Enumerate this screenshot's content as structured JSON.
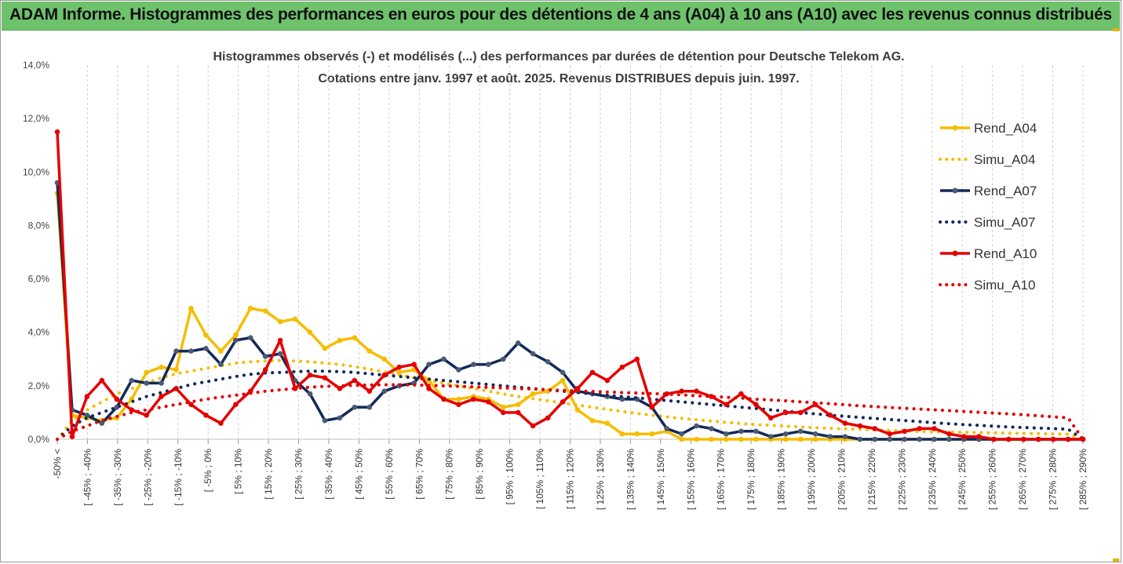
{
  "banner": {
    "title": "ADAM Informe. Histogrammes des performances en euros pour des détentions de 4 ans (A04) à 10 ans (A10) avec les revenus connus distribués",
    "color": "#6fc26c"
  },
  "chart_data": {
    "type": "line",
    "title": "Histogrammes observés (-) et modélisés (...) des performances par durées de détention pour Deutsche Telekom AG.",
    "subtitle": "Cotations entre janv. 1997 et août. 2025. Revenus DISTRIBUES depuis juin. 1997.",
    "xlabel": "",
    "ylabel": "",
    "ylim": [
      0,
      14
    ],
    "y_ticks": [
      "0,0%",
      "2,0%",
      "4,0%",
      "6,0%",
      "8,0%",
      "10,0%",
      "12,0%",
      "14,0%"
    ],
    "grid": "vertical dashed",
    "legend_position": "right",
    "x_tick_labels": [
      "-50% <",
      "[ -45% ; -40%",
      "[ -35% ; -30%",
      "[ -25% ; -20%",
      "[ -15% ; -10%",
      "[ -5% ; 0%",
      "[ 5% ; 10%",
      "[ 15% ; 20%",
      "[ 25% ; 30%",
      "[ 35% ; 40%",
      "[ 45% ; 50%",
      "[ 55% ; 60%",
      "[ 65% ; 70%",
      "[ 75% ; 80%",
      "[ 85% ; 90%",
      "[ 95% ; 100%",
      "[ 105% ; 110%",
      "[ 115% ; 120%",
      "[ 125% ; 130%",
      "[ 135% ; 140%",
      "[ 145% ; 150%",
      "[ 155% ; 160%",
      "[ 165% ; 170%",
      "[ 175% ; 180%",
      "[ 185% ; 190%",
      "[ 195% ; 200%",
      "[ 205% ; 210%",
      "[ 215% ; 220%",
      "[ 225% ; 230%",
      "[ 235% ; 240%",
      "[ 245% ; 250%",
      "[ 255% ; 260%",
      "[ 265% ; 270%",
      "[ 275% ; 280%",
      "[ 285% ; 290%"
    ],
    "series": [
      {
        "name": "Rend_A04",
        "style": "solid",
        "color": "#f5bd00",
        "values": [
          9.2,
          0.9,
          0.8,
          0.7,
          0.8,
          1.5,
          2.5,
          2.7,
          2.6,
          4.9,
          3.9,
          3.3,
          3.9,
          4.9,
          4.8,
          4.4,
          4.5,
          4.0,
          3.4,
          3.7,
          3.8,
          3.3,
          3.0,
          2.5,
          2.6,
          2.2,
          1.5,
          1.5,
          1.6,
          1.5,
          1.2,
          1.3,
          1.7,
          1.8,
          2.2,
          1.1,
          0.7,
          0.6,
          0.2,
          0.2,
          0.2,
          0.3,
          0.0,
          0.0,
          0.0,
          0.0,
          0.0,
          0.0,
          0.0,
          0.0,
          0.0,
          0.0,
          0.0,
          0.0,
          0.0,
          0.0,
          0.0,
          0.0,
          0.0,
          0.0,
          0.0,
          0.0,
          0.0,
          0.0,
          0.0,
          0.0,
          0.0,
          0.0,
          0.0,
          0.0
        ]
      },
      {
        "name": "Simu_A04",
        "style": "dotted",
        "color": "#f5bd00",
        "values": [
          0.0,
          0.7,
          1.1,
          1.4,
          1.7,
          1.9,
          2.1,
          2.3,
          2.45,
          2.55,
          2.65,
          2.75,
          2.85,
          2.9,
          2.93,
          2.95,
          2.93,
          2.9,
          2.85,
          2.8,
          2.72,
          2.62,
          2.52,
          2.42,
          2.3,
          2.2,
          2.1,
          2.0,
          1.9,
          1.8,
          1.7,
          1.6,
          1.52,
          1.44,
          1.36,
          1.28,
          1.2,
          1.12,
          1.04,
          0.97,
          0.9,
          0.84,
          0.78,
          0.73,
          0.68,
          0.63,
          0.59,
          0.55,
          0.52,
          0.49,
          0.46,
          0.43,
          0.41,
          0.39,
          0.37,
          0.35,
          0.33,
          0.31,
          0.29,
          0.28,
          0.27,
          0.26,
          0.25,
          0.24,
          0.23,
          0.22,
          0.21,
          0.2,
          0.19,
          0.0
        ]
      },
      {
        "name": "Rend_A07",
        "style": "solid",
        "color": "#12295a",
        "values": [
          9.6,
          1.1,
          0.9,
          0.6,
          1.2,
          2.2,
          2.1,
          2.1,
          3.3,
          3.3,
          3.4,
          2.8,
          3.7,
          3.8,
          3.1,
          3.2,
          2.2,
          1.7,
          0.7,
          0.8,
          1.2,
          1.2,
          1.8,
          2.0,
          2.1,
          2.8,
          3.0,
          2.6,
          2.8,
          2.8,
          3.0,
          3.6,
          3.2,
          2.9,
          2.5,
          1.8,
          1.7,
          1.6,
          1.5,
          1.5,
          1.2,
          0.4,
          0.2,
          0.5,
          0.4,
          0.2,
          0.3,
          0.3,
          0.1,
          0.2,
          0.3,
          0.2,
          0.1,
          0.1,
          0.0,
          0.0,
          0.0,
          0.0,
          0.0,
          0.0,
          0.0,
          0.0,
          0.0,
          0.0,
          0.0,
          0.0,
          0.0,
          0.0,
          0.0,
          0.0
        ]
      },
      {
        "name": "Simu_A07",
        "style": "dotted",
        "color": "#12295a",
        "values": [
          0.0,
          0.5,
          0.8,
          1.0,
          1.2,
          1.4,
          1.6,
          1.75,
          1.9,
          2.05,
          2.15,
          2.25,
          2.35,
          2.43,
          2.48,
          2.5,
          2.53,
          2.55,
          2.55,
          2.53,
          2.5,
          2.45,
          2.4,
          2.35,
          2.3,
          2.25,
          2.2,
          2.15,
          2.1,
          2.05,
          2.0,
          1.95,
          1.9,
          1.85,
          1.8,
          1.75,
          1.7,
          1.65,
          1.6,
          1.55,
          1.5,
          1.45,
          1.4,
          1.35,
          1.3,
          1.25,
          1.2,
          1.15,
          1.1,
          1.05,
          1.0,
          0.95,
          0.9,
          0.86,
          0.82,
          0.78,
          0.74,
          0.7,
          0.66,
          0.62,
          0.58,
          0.55,
          0.52,
          0.49,
          0.46,
          0.44,
          0.42,
          0.4,
          0.38,
          0.0
        ]
      },
      {
        "name": "Rend_A10",
        "style": "solid",
        "color": "#e50000",
        "values": [
          11.5,
          0.1,
          1.6,
          2.2,
          1.5,
          1.1,
          0.9,
          1.6,
          1.9,
          1.3,
          0.9,
          0.6,
          1.3,
          1.8,
          2.6,
          3.7,
          1.9,
          2.4,
          2.3,
          1.9,
          2.2,
          1.8,
          2.4,
          2.7,
          2.8,
          1.9,
          1.5,
          1.3,
          1.5,
          1.4,
          1.0,
          1.0,
          0.5,
          0.8,
          1.4,
          1.9,
          2.5,
          2.2,
          2.7,
          3.0,
          1.2,
          1.7,
          1.8,
          1.8,
          1.6,
          1.3,
          1.7,
          1.3,
          0.8,
          1.0,
          1.0,
          1.3,
          0.9,
          0.6,
          0.5,
          0.4,
          0.2,
          0.3,
          0.4,
          0.4,
          0.2,
          0.1,
          0.1,
          0.0,
          0.0,
          0.0,
          0.0,
          0.0,
          0.0,
          0.0
        ]
      },
      {
        "name": "Simu_A10",
        "style": "dotted",
        "color": "#e50000",
        "values": [
          0.0,
          0.3,
          0.5,
          0.7,
          0.85,
          1.0,
          1.1,
          1.2,
          1.3,
          1.4,
          1.5,
          1.58,
          1.65,
          1.72,
          1.8,
          1.85,
          1.9,
          1.95,
          1.98,
          2.0,
          2.02,
          2.03,
          2.04,
          2.04,
          2.03,
          2.02,
          2.0,
          1.98,
          1.96,
          1.94,
          1.92,
          1.9,
          1.88,
          1.85,
          1.83,
          1.81,
          1.79,
          1.77,
          1.75,
          1.73,
          1.71,
          1.69,
          1.66,
          1.63,
          1.6,
          1.57,
          1.54,
          1.5,
          1.47,
          1.44,
          1.4,
          1.37,
          1.33,
          1.29,
          1.25,
          1.22,
          1.19,
          1.16,
          1.13,
          1.1,
          1.07,
          1.04,
          1.01,
          0.98,
          0.95,
          0.92,
          0.88,
          0.84,
          0.8,
          0.0
        ]
      }
    ]
  }
}
